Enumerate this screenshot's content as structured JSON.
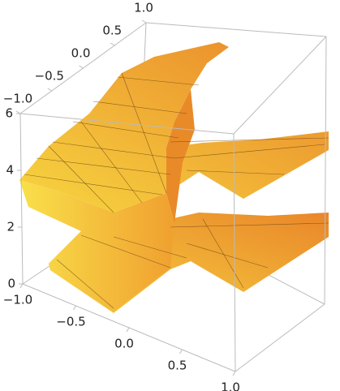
{
  "chart_data": {
    "type": "surface3d",
    "xlim": [
      -1,
      1
    ],
    "ylim": [
      -1,
      1
    ],
    "zlim": [
      0,
      6
    ],
    "xticks": [
      {
        "value": -1,
        "label": "−1.0"
      },
      {
        "value": -0.5,
        "label": "−0.5"
      },
      {
        "value": 0,
        "label": "0.0"
      },
      {
        "value": 0.5,
        "label": "0.5"
      },
      {
        "value": 1,
        "label": "1.0"
      }
    ],
    "yticks": [
      {
        "value": -1,
        "label": "−1.0"
      },
      {
        "value": -0.5,
        "label": "−0.5"
      },
      {
        "value": 0,
        "label": "0.0"
      },
      {
        "value": 0.5,
        "label": "0.5"
      },
      {
        "value": 1,
        "label": "1.0"
      }
    ],
    "zticks": [
      0,
      2,
      4,
      6
    ],
    "color": "#f5a623"
  }
}
